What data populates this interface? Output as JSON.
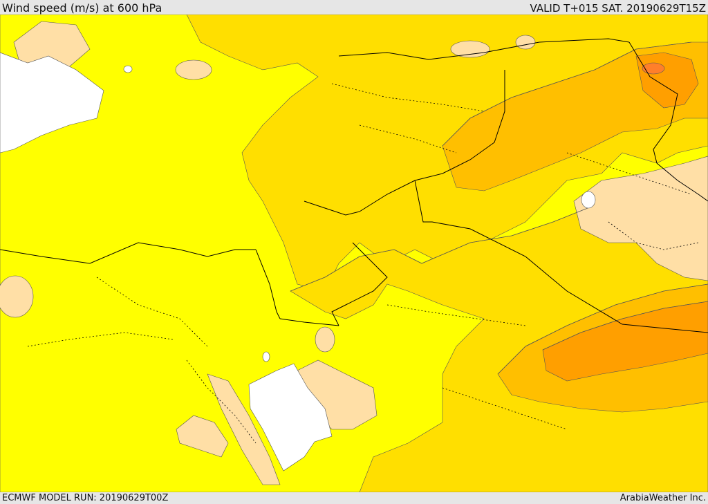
{
  "header": {
    "title": "Wind speed (m/s) at 600 hPa",
    "valid_time": "VALID T+015 SAT. 20190629T15Z"
  },
  "footer": {
    "model_run": "ECMWF MODEL RUN: 20190629T00Z",
    "credit": "ArabiaWeather Inc."
  },
  "map": {
    "colors": {
      "sea": "#ffffff",
      "band_lowest": "#ffdfa6",
      "band_low": "#ffff00",
      "band_mid": "#ffdf00",
      "band_high": "#ffbf00",
      "band_highest": "#ff9f00",
      "band_peak": "#ff7f2a",
      "border": "#000000",
      "contour": "#555555"
    }
  }
}
